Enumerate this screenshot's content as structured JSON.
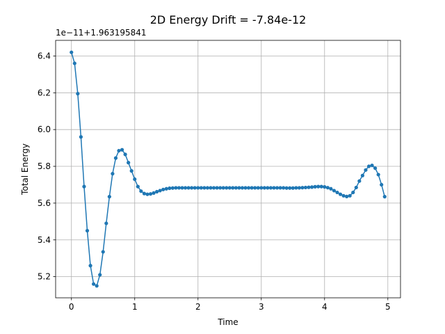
{
  "chart_data": {
    "type": "line",
    "title": "2D Energy Drift = -7.84e-12",
    "xlabel": "Time",
    "ylabel": "Total Energy",
    "offset_label": "1e−11+1.963195841",
    "xlim": [
      -0.25,
      5.2
    ],
    "ylim": [
      5.085,
      6.485
    ],
    "xticks": [
      0,
      1,
      2,
      3,
      4,
      5
    ],
    "yticks": [
      5.2,
      5.4,
      5.6,
      5.8,
      6.0,
      6.2,
      6.4
    ],
    "xtick_labels": [
      "0",
      "1",
      "2",
      "3",
      "4",
      "5"
    ],
    "ytick_labels": [
      "5.2",
      "5.4",
      "5.6",
      "5.8",
      "6.0",
      "6.2",
      "6.4"
    ],
    "grid": true,
    "legend": "none",
    "series": [
      {
        "color": "#1f77b4",
        "marker": "circle",
        "x": [
          0.0,
          0.05,
          0.1,
          0.15,
          0.2,
          0.25,
          0.3,
          0.35,
          0.4,
          0.45,
          0.5,
          0.55,
          0.6,
          0.65,
          0.7,
          0.75,
          0.8,
          0.85,
          0.9,
          0.95,
          1.0,
          1.05,
          1.1,
          1.15,
          1.2,
          1.25,
          1.3,
          1.35,
          1.4,
          1.45,
          1.5,
          1.55,
          1.6,
          1.65,
          1.7,
          1.75,
          1.8,
          1.85,
          1.9,
          1.95,
          2.0,
          2.05,
          2.1,
          2.15,
          2.2,
          2.25,
          2.3,
          2.35,
          2.4,
          2.45,
          2.5,
          2.55,
          2.6,
          2.65,
          2.7,
          2.75,
          2.8,
          2.85,
          2.9,
          2.95,
          3.0,
          3.05,
          3.1,
          3.15,
          3.2,
          3.25,
          3.3,
          3.35,
          3.4,
          3.45,
          3.5,
          3.55,
          3.6,
          3.65,
          3.7,
          3.75,
          3.8,
          3.85,
          3.9,
          3.95,
          4.0,
          4.05,
          4.1,
          4.15,
          4.2,
          4.25,
          4.3,
          4.35,
          4.4,
          4.45,
          4.5,
          4.55,
          4.6,
          4.65,
          4.7,
          4.75,
          4.8,
          4.85,
          4.9,
          4.95
        ],
        "y": [
          6.42,
          6.36,
          6.195,
          5.96,
          5.69,
          5.45,
          5.26,
          5.16,
          5.15,
          5.21,
          5.335,
          5.49,
          5.635,
          5.76,
          5.845,
          5.885,
          5.89,
          5.865,
          5.82,
          5.775,
          5.73,
          5.69,
          5.665,
          5.652,
          5.648,
          5.65,
          5.655,
          5.662,
          5.668,
          5.674,
          5.678,
          5.681,
          5.682,
          5.683,
          5.683,
          5.683,
          5.683,
          5.683,
          5.683,
          5.683,
          5.683,
          5.683,
          5.683,
          5.683,
          5.683,
          5.683,
          5.683,
          5.683,
          5.683,
          5.683,
          5.683,
          5.683,
          5.683,
          5.683,
          5.683,
          5.683,
          5.683,
          5.683,
          5.683,
          5.683,
          5.683,
          5.683,
          5.683,
          5.683,
          5.683,
          5.683,
          5.683,
          5.683,
          5.682,
          5.682,
          5.682,
          5.683,
          5.683,
          5.684,
          5.685,
          5.686,
          5.687,
          5.689,
          5.69,
          5.69,
          5.688,
          5.684,
          5.678,
          5.668,
          5.658,
          5.648,
          5.64,
          5.636,
          5.64,
          5.658,
          5.685,
          5.72,
          5.75,
          5.78,
          5.8,
          5.805,
          5.79,
          5.755,
          5.7,
          5.635
        ]
      }
    ]
  }
}
